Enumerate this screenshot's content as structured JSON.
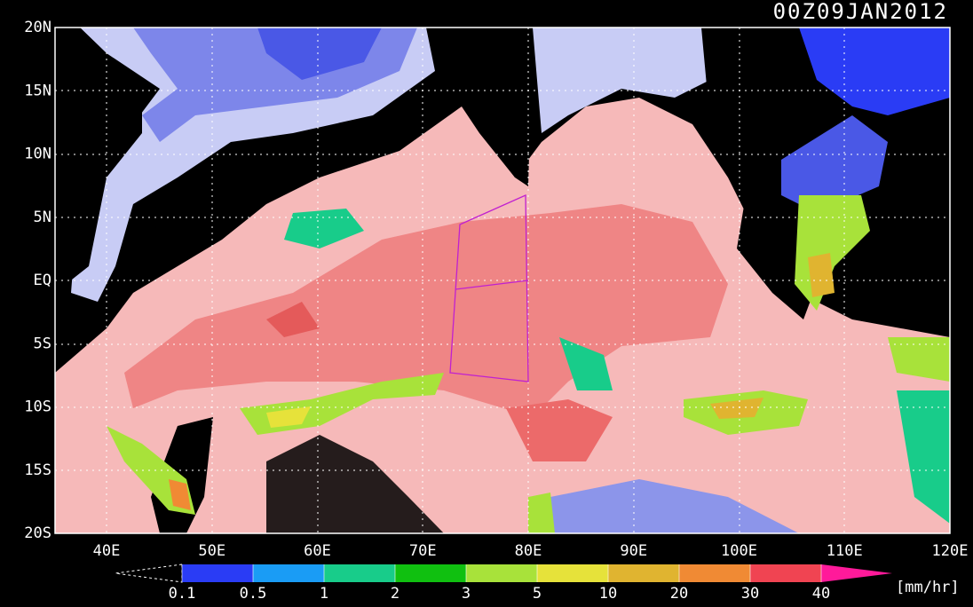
{
  "title": "00Z09JAN2012",
  "lat_labels": [
    "20N",
    "15N",
    "10N",
    "5N",
    "EQ",
    "5S",
    "10S",
    "15S",
    "20S"
  ],
  "lon_labels": [
    "40E",
    "50E",
    "60E",
    "70E",
    "80E",
    "90E",
    "100E",
    "110E",
    "120E"
  ],
  "colorbar": {
    "levels": [
      0.1,
      0.5,
      1,
      2,
      3,
      5,
      10,
      20,
      30,
      40
    ],
    "colors": [
      "#2a3cf5",
      "#1a9cf5",
      "#18cc8a",
      "#10c010",
      "#a8e23a",
      "#e6e23a",
      "#e0b430",
      "#f08a34",
      "#f04452"
    ],
    "over_color": "#ff1a9a",
    "under_color": "#000000",
    "unit": "[mm/hr]"
  }
}
